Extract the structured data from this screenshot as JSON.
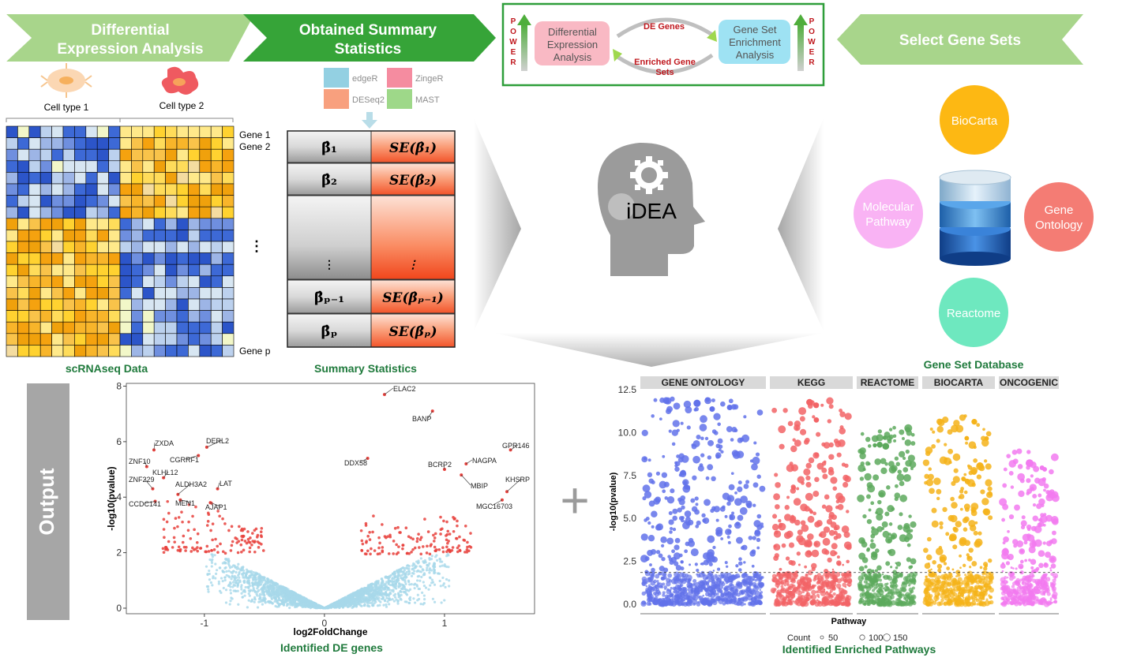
{
  "banners": {
    "step1": [
      "Differential",
      "Expression Analysis"
    ],
    "step2": [
      "Obtained Summary",
      "Statistics"
    ],
    "step4": "Select Gene Sets"
  },
  "heatmap": {
    "cell_type_1": "Cell type 1",
    "cell_type_2": "Cell type 2",
    "gene1": "Gene 1",
    "gene2": "Gene 2",
    "genep": "Gene p",
    "dots": "⋮",
    "caption": "scRNAseq Data",
    "colors": {
      "blue_dark": "#2c55c9",
      "blue_light": "#bcd1ee",
      "orange": "#f5a20f",
      "yellow": "#ffd230"
    }
  },
  "tools": [
    {
      "name": "edgeR",
      "color": "#93d0e2"
    },
    {
      "name": "ZingeR",
      "color": "#f58ca0"
    },
    {
      "name": "DESeq2",
      "color": "#f8a07e"
    },
    {
      "name": "MAST",
      "color": "#9ed889"
    }
  ],
  "summary_table": {
    "caption": "Summary Statistics",
    "rows": [
      {
        "beta": "β̂₁",
        "se": "SE(β̂₁)"
      },
      {
        "beta": "β̂₂",
        "se": "SE(β̂₂)"
      },
      {
        "beta": "⋮",
        "se": "⋮"
      },
      {
        "beta": "β̂ₚ₋₁",
        "se": "SE(β̂ₚ₋₁)"
      },
      {
        "beta": "β̂ₚ",
        "se": "SE(β̂ₚ)"
      }
    ]
  },
  "cycle": {
    "left_box": [
      "Differential",
      "Expression",
      "Analysis"
    ],
    "right_box": [
      "Gene Set",
      "Enrichment",
      "Analysis"
    ],
    "top_label": "DE Genes",
    "bottom_label": [
      "Enriched Gene",
      "Sets"
    ],
    "power_letters": [
      "P",
      "O",
      "W",
      "E",
      "R"
    ]
  },
  "center": {
    "label": "iDEA"
  },
  "databases": {
    "biocarta": "BioCarta",
    "molecular": [
      "Molecular",
      "Pathway"
    ],
    "gene_ontology": [
      "Gene",
      "Ontology"
    ],
    "reactome": "Reactome",
    "caption": "Gene Set Database",
    "colors": {
      "biocarta": "#fdb813",
      "molecular": "#f9b3f4",
      "gene_ontology": "#f47c74",
      "reactome": "#6ee8bf"
    }
  },
  "output_label": "Output",
  "plus": "+",
  "chart_data": [
    {
      "type": "scatter",
      "title": "",
      "caption": "Identified DE genes",
      "xlabel": "log2FoldChange",
      "ylabel": "-log10(pvalue)",
      "xlim": [
        -1.65,
        1.75
      ],
      "ylim": [
        -0.2,
        8.1
      ],
      "xticks": [
        -1,
        0,
        1
      ],
      "yticks": [
        0,
        2,
        4,
        6,
        8
      ],
      "series": [
        {
          "color": "#a8d8ea",
          "values": "background points forming a V shape (not significant)"
        },
        {
          "color": "#e8413c",
          "values": "significant points"
        }
      ],
      "labeled_points": [
        {
          "label": "ELAC2",
          "x": 0.5,
          "y": 7.7
        },
        {
          "label": "BANP",
          "x": 0.9,
          "y": 7.1
        },
        {
          "label": "ZXDA",
          "x": -1.42,
          "y": 5.7
        },
        {
          "label": "DERL2",
          "x": -0.98,
          "y": 5.8
        },
        {
          "label": "GPR146",
          "x": 1.55,
          "y": 5.7
        },
        {
          "label": "CGRRF1",
          "x": -1.05,
          "y": 5.5
        },
        {
          "label": "ZNF10",
          "x": -1.48,
          "y": 5.1
        },
        {
          "label": "DDX58",
          "x": 0.36,
          "y": 5.4
        },
        {
          "label": "BCRP2",
          "x": 1.0,
          "y": 5.0
        },
        {
          "label": "NAGPA",
          "x": 1.18,
          "y": 5.2
        },
        {
          "label": "KLHL12",
          "x": -1.34,
          "y": 4.7
        },
        {
          "label": "ZNF229",
          "x": -1.43,
          "y": 4.3
        },
        {
          "label": "ALDH3A2",
          "x": -1.22,
          "y": 4.1
        },
        {
          "label": "LAT",
          "x": -0.89,
          "y": 4.3
        },
        {
          "label": "MBIP",
          "x": 1.14,
          "y": 4.8
        },
        {
          "label": "KHSRP",
          "x": 1.52,
          "y": 4.2
        },
        {
          "label": "CCDC141",
          "x": -1.41,
          "y": 3.85
        },
        {
          "label": "MEN1",
          "x": -1.2,
          "y": 3.9
        },
        {
          "label": "AJAP1",
          "x": -0.95,
          "y": 3.8
        },
        {
          "label": "MGC16703",
          "x": 1.48,
          "y": 3.9
        }
      ]
    },
    {
      "type": "scatter",
      "title": "",
      "caption": "Identified Enriched Pathways",
      "xlabel": "Pathway",
      "ylabel": "-log10(pvalue)",
      "ylim": [
        0,
        12.5
      ],
      "yticks": [
        "0.0",
        "2.5",
        "5.0",
        "7.5",
        "10.0",
        "12.5"
      ],
      "threshold": 1.85,
      "panels": [
        {
          "name": "GENE ONTOLOGY",
          "color": "#6272ea",
          "max": 12.0
        },
        {
          "name": "KEGG",
          "color": "#f26466",
          "max": 12.0
        },
        {
          "name": "REACTOME",
          "color": "#5da95d",
          "max": 10.5
        },
        {
          "name": "BIOCARTA",
          "color": "#f5b31a",
          "max": 11.0
        },
        {
          "name": "ONCOGENIC",
          "color": "#f27af0",
          "max": 9.0
        }
      ],
      "legend": {
        "title": "Count",
        "sizes": [
          50,
          100,
          150
        ]
      }
    }
  ]
}
